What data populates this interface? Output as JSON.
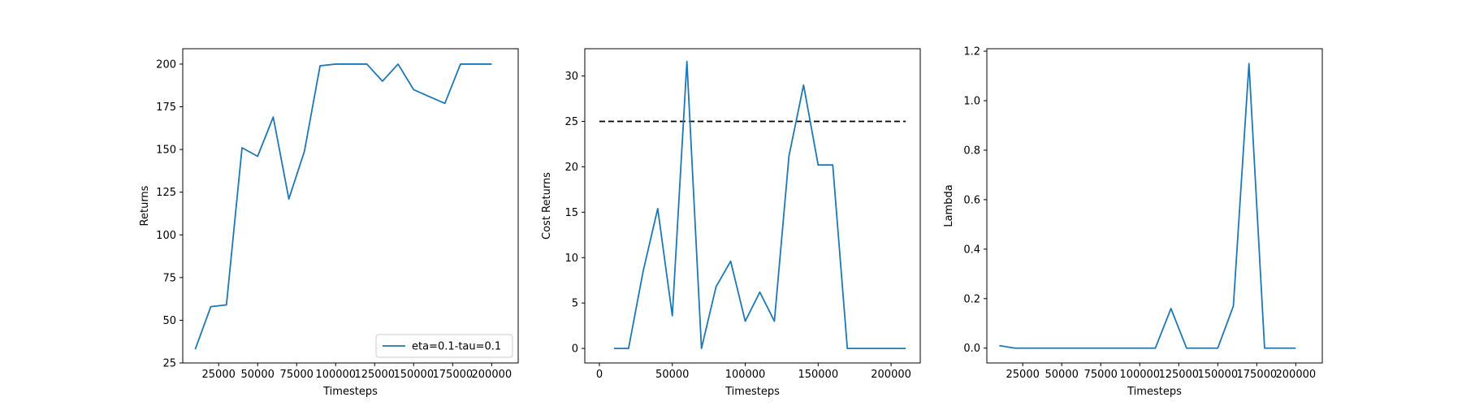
{
  "colors": {
    "series": "#1f77b4",
    "threshold": "#000000",
    "axes": "#000000",
    "background": "#ffffff"
  },
  "chart_data": [
    {
      "type": "line",
      "xlabel": "Timesteps",
      "ylabel": "Returns",
      "xlim": [
        2000,
        217000
      ],
      "ylim": [
        25,
        209
      ],
      "xticks": [
        25000,
        50000,
        75000,
        100000,
        125000,
        150000,
        175000,
        200000
      ],
      "xtick_labels": [
        "25000",
        "50000",
        "75000",
        "100000",
        "125000",
        "150000",
        "175000",
        "200000"
      ],
      "yticks": [
        25,
        50,
        75,
        100,
        125,
        150,
        175,
        200
      ],
      "ytick_labels": [
        "25",
        "50",
        "75",
        "100",
        "125",
        "150",
        "175",
        "200"
      ],
      "grid": false,
      "legend": "lower-right",
      "series": [
        {
          "name": "eta=0.1-tau=0.1",
          "x": [
            10000,
            20000,
            30000,
            40000,
            50000,
            60000,
            70000,
            80000,
            90000,
            100000,
            110000,
            120000,
            130000,
            140000,
            150000,
            160000,
            170000,
            180000,
            190000,
            200000
          ],
          "y": [
            33,
            58,
            59,
            151,
            146,
            169,
            121,
            149,
            199,
            200,
            200,
            200,
            190,
            200,
            185,
            181,
            177,
            200,
            200,
            200
          ]
        }
      ]
    },
    {
      "type": "line",
      "xlabel": "Timesteps",
      "ylabel": "Cost Returns",
      "xlim": [
        -10000,
        220000
      ],
      "ylim": [
        -1.6,
        33.0
      ],
      "xticks": [
        0,
        50000,
        100000,
        150000,
        200000
      ],
      "xtick_labels": [
        "0",
        "50000",
        "100000",
        "150000",
        "200000"
      ],
      "yticks": [
        0,
        5,
        10,
        15,
        20,
        25,
        30
      ],
      "ytick_labels": [
        "0",
        "5",
        "10",
        "15",
        "20",
        "25",
        "30"
      ],
      "grid": false,
      "threshold": {
        "y": 25,
        "x": [
          0,
          210000
        ],
        "style": "dashed"
      },
      "series": [
        {
          "x": [
            10000,
            20000,
            30000,
            40000,
            50000,
            60000,
            70000,
            80000,
            90000,
            100000,
            110000,
            120000,
            130000,
            140000,
            150000,
            160000,
            170000,
            180000,
            190000,
            200000,
            210000
          ],
          "y": [
            0,
            0,
            8.5,
            15.4,
            3.6,
            31.6,
            0,
            6.8,
            9.6,
            3.0,
            6.2,
            3.0,
            21.2,
            29.0,
            20.2,
            20.2,
            0,
            0,
            0,
            0,
            0
          ]
        }
      ]
    },
    {
      "type": "line",
      "xlabel": "Timesteps",
      "ylabel": "Lambda",
      "xlim": [
        2000,
        217000
      ],
      "ylim": [
        -0.06,
        1.21
      ],
      "xticks": [
        25000,
        50000,
        75000,
        100000,
        125000,
        150000,
        175000,
        200000
      ],
      "xtick_labels": [
        "25000",
        "50000",
        "75000",
        "100000",
        "125000",
        "150000",
        "175000",
        "200000"
      ],
      "yticks": [
        0.0,
        0.2,
        0.4,
        0.6,
        0.8,
        1.0,
        1.2
      ],
      "ytick_labels": [
        "0.0",
        "0.2",
        "0.4",
        "0.6",
        "0.8",
        "1.0",
        "1.2"
      ],
      "grid": false,
      "series": [
        {
          "x": [
            10000,
            20000,
            30000,
            40000,
            50000,
            60000,
            70000,
            80000,
            90000,
            100000,
            110000,
            120000,
            130000,
            140000,
            150000,
            160000,
            170000,
            180000,
            190000,
            200000
          ],
          "y": [
            0.01,
            0,
            0,
            0,
            0,
            0,
            0,
            0,
            0,
            0,
            0,
            0.16,
            0,
            0,
            0,
            0.17,
            1.15,
            0,
            0,
            0
          ]
        }
      ]
    }
  ]
}
